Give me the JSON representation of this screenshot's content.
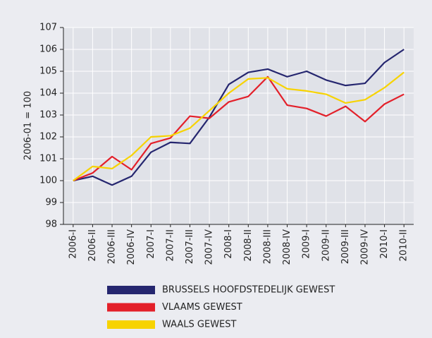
{
  "chart_data": {
    "type": "line",
    "y_label": "2006-01 = 100",
    "categories": [
      "2006-I",
      "2006-II",
      "2006-III",
      "2006-IV",
      "2007-I",
      "2007-II",
      "2007-III",
      "2007-IV",
      "2008-I",
      "2008-II",
      "2008-III",
      "2008-IV",
      "2009-I",
      "2009-II",
      "2009-III",
      "2009-IV",
      "2010-I",
      "2010-II"
    ],
    "series": [
      {
        "name": "BRUSSELS HOOFDSTEDELIJK GEWEST",
        "color": "#25266f",
        "values": [
          100,
          100.2,
          99.8,
          100.2,
          101.3,
          101.75,
          101.7,
          102.9,
          104.4,
          104.95,
          105.1,
          104.75,
          105.0,
          104.6,
          104.35,
          104.45,
          105.4,
          106.0
        ]
      },
      {
        "name": "VLAAMS GEWEST",
        "color": "#e3202a",
        "values": [
          100,
          100.35,
          101.1,
          100.5,
          101.7,
          101.95,
          102.95,
          102.85,
          103.6,
          103.85,
          104.75,
          103.45,
          103.3,
          102.95,
          103.4,
          102.7,
          103.5,
          103.95
        ]
      },
      {
        "name": "WAALS GEWEST",
        "color": "#f7d300",
        "values": [
          100,
          100.65,
          100.55,
          101.15,
          102.0,
          102.05,
          102.4,
          103.2,
          104.0,
          104.65,
          104.7,
          104.2,
          104.1,
          103.95,
          103.55,
          103.7,
          104.25,
          104.95
        ]
      }
    ],
    "ylim": [
      98,
      107
    ],
    "yticks": [
      98,
      99,
      100,
      101,
      102,
      103,
      104,
      105,
      106,
      107
    ],
    "grid": true
  }
}
